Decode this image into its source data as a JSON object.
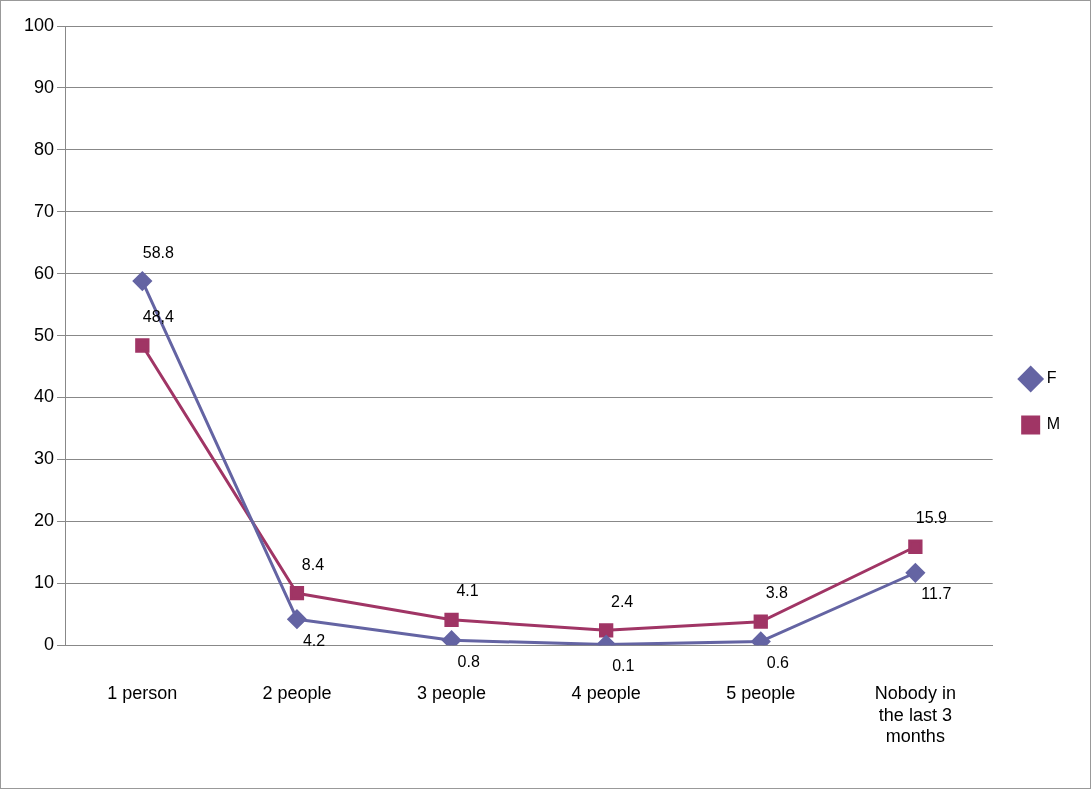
{
  "chart_data": {
    "type": "line",
    "categories": [
      "1 person",
      "2 people",
      "3 people",
      "4 people",
      "5 people",
      "Nobody in the last 3 months"
    ],
    "series": [
      {
        "name": "F",
        "color": "#6464a3",
        "marker": "diamond",
        "values": [
          58.8,
          4.2,
          0.8,
          0.1,
          0.6,
          11.7
        ],
        "value_labels": [
          "58.8",
          "4.2",
          "0.8",
          "0.1",
          "0.6",
          "11.7"
        ]
      },
      {
        "name": "M",
        "color": "#a03565",
        "marker": "square",
        "values": [
          48.4,
          8.4,
          4.1,
          2.4,
          3.8,
          15.9
        ],
        "value_labels": [
          "48,4",
          "8.4",
          "4.1",
          "2.4",
          "3.8",
          "15.9"
        ]
      }
    ],
    "ylim": [
      0,
      100
    ],
    "yticks": [
      0,
      10,
      20,
      30,
      40,
      50,
      60,
      70,
      80,
      90,
      100
    ],
    "grid": "y",
    "legend": "right"
  }
}
